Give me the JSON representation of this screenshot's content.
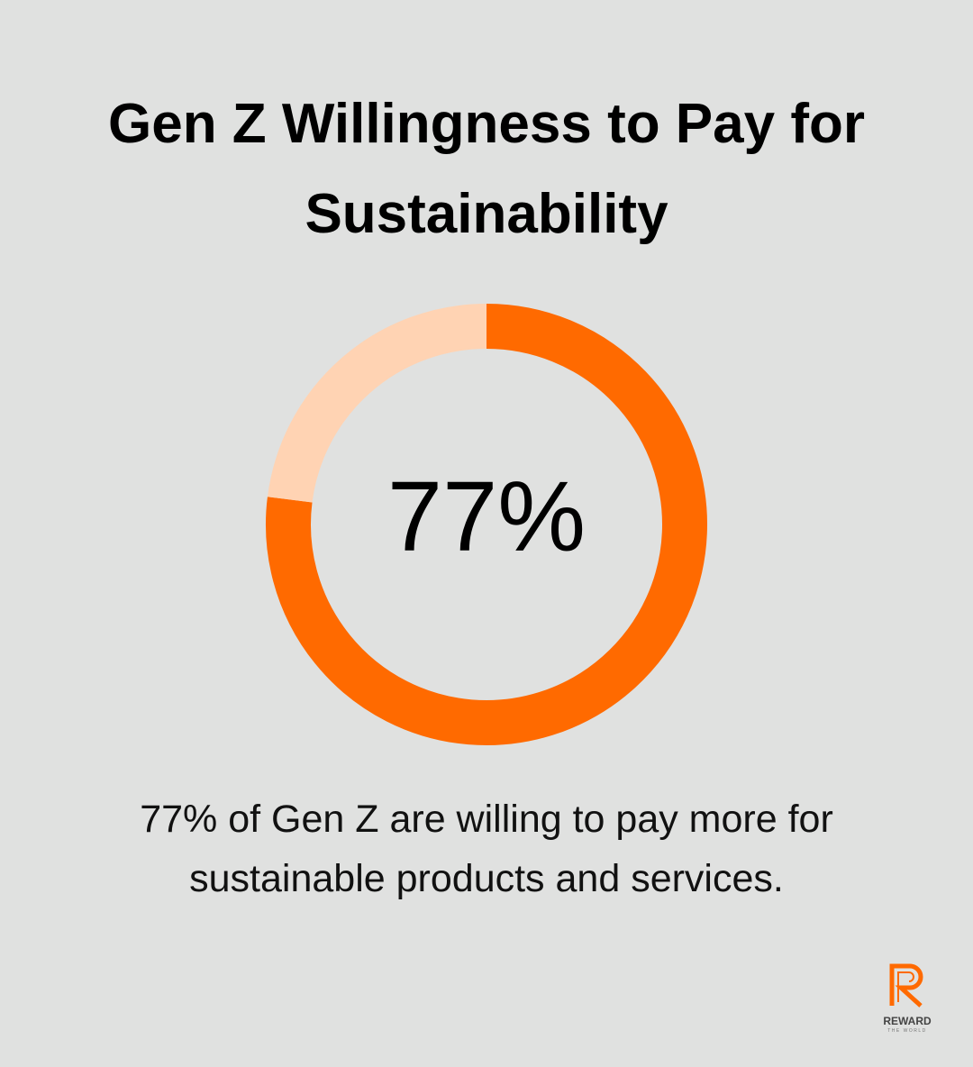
{
  "chart_data": {
    "type": "pie",
    "title": "Gen Z Willingness to Pay for Sustainability",
    "categories": [
      null,
      null
    ],
    "values": [
      77,
      23
    ],
    "value_labels": [
      "77%",
      null
    ],
    "colors": [
      "#ff6a00",
      "#ffd3b3"
    ],
    "donut": true,
    "caption": "77% of Gen Z are willing to pay more for sustainable products and services."
  },
  "logo": {
    "name": "REWARD",
    "tagline": "THE WORLD"
  }
}
